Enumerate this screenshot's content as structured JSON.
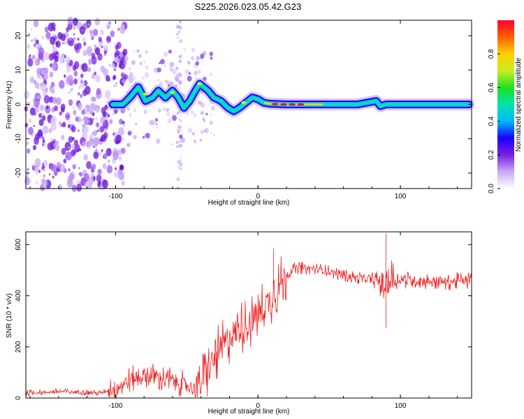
{
  "title": "S225.2026.023.05.42.G23",
  "chart_data": [
    {
      "type": "heatmap",
      "xlabel": "Height of straight line (km)",
      "ylabel": "Frequency (Hz)",
      "xlim": [
        -163,
        150
      ],
      "ylim": [
        -24.5,
        24.5
      ],
      "xticks": [
        -100,
        0,
        100
      ],
      "yticks": [
        -20,
        -10,
        0,
        10,
        20
      ],
      "colorbar": {
        "label": "Normalized spectral amplitude",
        "range": [
          0,
          1
        ],
        "ticks": [
          "0.0",
          "0.2",
          "0.4",
          "0.6",
          "0.8"
        ],
        "colors": [
          "#ffffff",
          "#c9a9f7",
          "#7a1fe0",
          "#1a00ff",
          "#00b8ff",
          "#00e5a8",
          "#20e020",
          "#c8ee20",
          "#ffd000",
          "#ff6000",
          "#ff0030"
        ]
      },
      "ridge": {
        "x": [
          -102,
          -95,
          -90,
          -84,
          -79,
          -74,
          -70,
          -65,
          -60,
          -56,
          -52,
          -48,
          -44,
          -41,
          -38,
          -35,
          -31,
          -26,
          -21,
          -17,
          -13,
          -10,
          -7,
          -4,
          0,
          4,
          8,
          14,
          20,
          30,
          50,
          70,
          83,
          86,
          90,
          110,
          130,
          148
        ],
        "y": [
          0,
          0,
          2,
          5,
          1,
          2,
          4,
          2,
          4,
          2,
          -1,
          1,
          4,
          6,
          5,
          4,
          2,
          1,
          -1,
          -2,
          -1,
          0,
          1,
          2,
          1.5,
          0.5,
          0.2,
          0.1,
          0,
          0,
          0,
          0,
          1,
          -0.5,
          0,
          0,
          0,
          0
        ]
      }
    },
    {
      "type": "line",
      "xlabel": "Height of straight line (km)",
      "ylabel": "SNR (10 * v/v)",
      "xlim": [
        -163,
        150
      ],
      "ylim": [
        0,
        650
      ],
      "xticks": [
        -100,
        0,
        100
      ],
      "yticks": [
        0,
        200,
        400,
        600
      ],
      "color": "#ee2020",
      "trend": {
        "x": [
          -163,
          -140,
          -110,
          -100,
          -90,
          -80,
          -70,
          -60,
          -50,
          -45,
          -40,
          -35,
          -30,
          -25,
          -20,
          -15,
          -10,
          -5,
          0,
          5,
          10,
          15,
          20,
          25,
          30,
          40,
          50,
          60,
          70,
          80,
          85,
          88,
          90,
          92,
          95,
          100,
          110,
          120,
          130,
          140,
          150
        ],
        "y": [
          20,
          25,
          20,
          40,
          70,
          90,
          80,
          70,
          50,
          35,
          60,
          110,
          160,
          200,
          240,
          260,
          280,
          300,
          330,
          360,
          400,
          440,
          480,
          505,
          510,
          505,
          495,
          480,
          470,
          465,
          460,
          445,
          450,
          455,
          460,
          462,
          460,
          458,
          455,
          457,
          460
        ]
      },
      "annotations": [
        {
          "x": 11,
          "y": 585
        },
        {
          "x": 90,
          "y": 645
        },
        {
          "x": 90,
          "y": 275
        }
      ]
    }
  ]
}
